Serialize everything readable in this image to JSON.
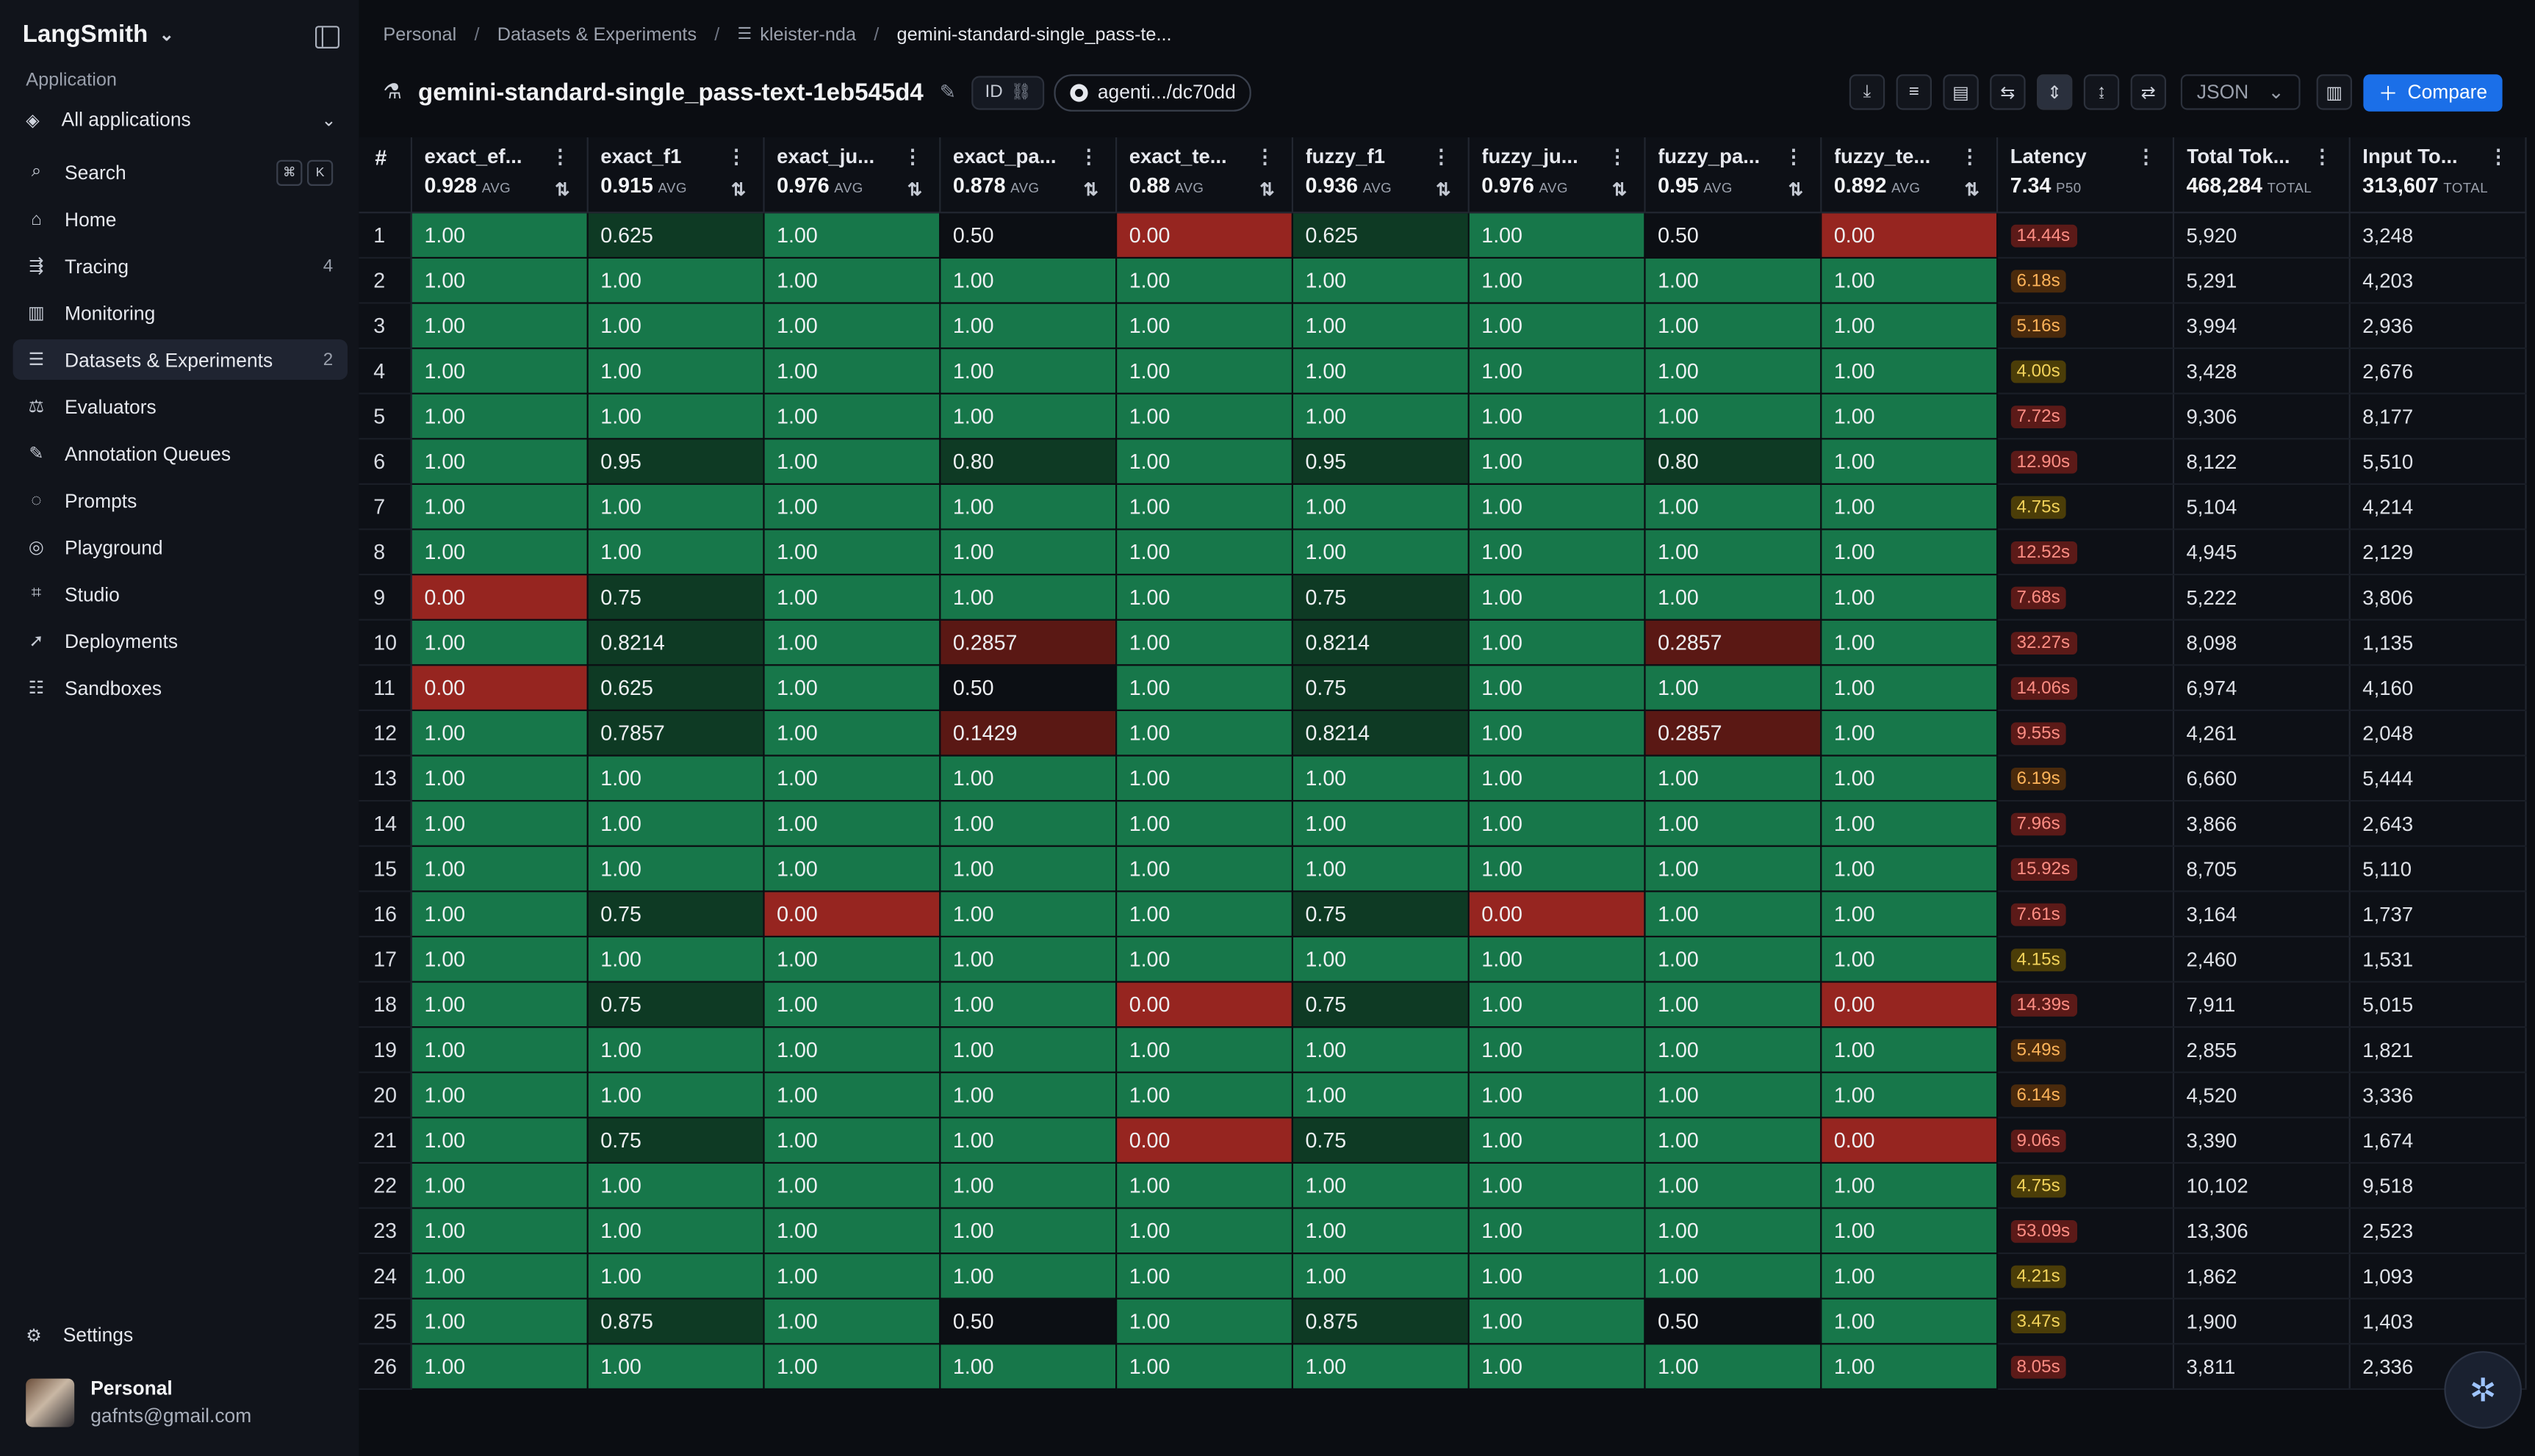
{
  "sidebar": {
    "brand": "LangSmith",
    "section_label": "Application",
    "app_selector": "All applications",
    "search": {
      "label": "Search",
      "shortcut": [
        "⌘",
        "K"
      ]
    },
    "items": [
      {
        "label": "Home",
        "icon": "home-icon",
        "glyph": "⌂",
        "badge": ""
      },
      {
        "label": "Tracing",
        "icon": "tracing-icon",
        "glyph": "⇶",
        "badge": "4"
      },
      {
        "label": "Monitoring",
        "icon": "monitoring-icon",
        "glyph": "▥",
        "badge": ""
      },
      {
        "label": "Datasets & Experiments",
        "icon": "database-icon",
        "glyph": "☰",
        "badge": "2",
        "active": true
      },
      {
        "label": "Evaluators",
        "icon": "evaluators-icon",
        "glyph": "⚖",
        "badge": ""
      },
      {
        "label": "Annotation Queues",
        "icon": "annotation-icon",
        "glyph": "✎",
        "badge": ""
      },
      {
        "label": "Prompts",
        "icon": "prompts-icon",
        "glyph": "◌",
        "badge": ""
      },
      {
        "label": "Playground",
        "icon": "playground-icon",
        "glyph": "◎",
        "badge": ""
      },
      {
        "label": "Studio",
        "icon": "studio-icon",
        "glyph": "⌗",
        "badge": ""
      },
      {
        "label": "Deployments",
        "icon": "rocket-icon",
        "glyph": "➚",
        "badge": ""
      },
      {
        "label": "Sandboxes",
        "icon": "sandbox-icon",
        "glyph": "☷",
        "badge": ""
      }
    ],
    "settings": "Settings",
    "user": {
      "name": "Personal",
      "email": "gafnts@gmail.com"
    }
  },
  "breadcrumb": [
    "Personal",
    "Datasets & Experiments",
    "kleister-nda",
    "gemini-standard-single_pass-te..."
  ],
  "header": {
    "title": "gemini-standard-single_pass-text-1eb545d4",
    "id_label": "ID",
    "git_label": "agenti.../dc70dd",
    "json_select": "JSON",
    "compare_label": "Compare"
  },
  "colors": {
    "green": "#17774a",
    "dark_green": "#0e3a24",
    "red": "#962520",
    "dark_red": "#5a1814",
    "neutral": "#0c0f14",
    "accent": "#1b6fe8"
  },
  "table": {
    "columns": [
      {
        "name": "exact_ef...",
        "agg": "0.928",
        "agg_label": "AVG"
      },
      {
        "name": "exact_f1",
        "agg": "0.915",
        "agg_label": "AVG"
      },
      {
        "name": "exact_ju...",
        "agg": "0.976",
        "agg_label": "AVG"
      },
      {
        "name": "exact_pa...",
        "agg": "0.878",
        "agg_label": "AVG"
      },
      {
        "name": "exact_te...",
        "agg": "0.88",
        "agg_label": "AVG"
      },
      {
        "name": "fuzzy_f1",
        "agg": "0.936",
        "agg_label": "AVG"
      },
      {
        "name": "fuzzy_ju...",
        "agg": "0.976",
        "agg_label": "AVG"
      },
      {
        "name": "fuzzy_pa...",
        "agg": "0.95",
        "agg_label": "AVG"
      },
      {
        "name": "fuzzy_te...",
        "agg": "0.892",
        "agg_label": "AVG"
      },
      {
        "name": "Latency",
        "agg": "7.34",
        "agg_label": "P50"
      },
      {
        "name": "Total Tok...",
        "agg": "468,284",
        "agg_label": "TOTAL"
      },
      {
        "name": "Input To...",
        "agg": "313,607",
        "agg_label": "TOTAL"
      }
    ],
    "rows": [
      [
        "1",
        "1.00",
        "0.625",
        "1.00",
        "0.50",
        "0.00",
        "0.625",
        "1.00",
        "0.50",
        "0.00",
        "14.44s",
        "5,920",
        "3,248"
      ],
      [
        "2",
        "1.00",
        "1.00",
        "1.00",
        "1.00",
        "1.00",
        "1.00",
        "1.00",
        "1.00",
        "1.00",
        "6.18s",
        "5,291",
        "4,203"
      ],
      [
        "3",
        "1.00",
        "1.00",
        "1.00",
        "1.00",
        "1.00",
        "1.00",
        "1.00",
        "1.00",
        "1.00",
        "5.16s",
        "3,994",
        "2,936"
      ],
      [
        "4",
        "1.00",
        "1.00",
        "1.00",
        "1.00",
        "1.00",
        "1.00",
        "1.00",
        "1.00",
        "1.00",
        "4.00s",
        "3,428",
        "2,676"
      ],
      [
        "5",
        "1.00",
        "1.00",
        "1.00",
        "1.00",
        "1.00",
        "1.00",
        "1.00",
        "1.00",
        "1.00",
        "7.72s",
        "9,306",
        "8,177"
      ],
      [
        "6",
        "1.00",
        "0.95",
        "1.00",
        "0.80",
        "1.00",
        "0.95",
        "1.00",
        "0.80",
        "1.00",
        "12.90s",
        "8,122",
        "5,510"
      ],
      [
        "7",
        "1.00",
        "1.00",
        "1.00",
        "1.00",
        "1.00",
        "1.00",
        "1.00",
        "1.00",
        "1.00",
        "4.75s",
        "5,104",
        "4,214"
      ],
      [
        "8",
        "1.00",
        "1.00",
        "1.00",
        "1.00",
        "1.00",
        "1.00",
        "1.00",
        "1.00",
        "1.00",
        "12.52s",
        "4,945",
        "2,129"
      ],
      [
        "9",
        "0.00",
        "0.75",
        "1.00",
        "1.00",
        "1.00",
        "0.75",
        "1.00",
        "1.00",
        "1.00",
        "7.68s",
        "5,222",
        "3,806"
      ],
      [
        "10",
        "1.00",
        "0.8214",
        "1.00",
        "0.2857",
        "1.00",
        "0.8214",
        "1.00",
        "0.2857",
        "1.00",
        "32.27s",
        "8,098",
        "1,135"
      ],
      [
        "11",
        "0.00",
        "0.625",
        "1.00",
        "0.50",
        "1.00",
        "0.75",
        "1.00",
        "1.00",
        "1.00",
        "14.06s",
        "6,974",
        "4,160"
      ],
      [
        "12",
        "1.00",
        "0.7857",
        "1.00",
        "0.1429",
        "1.00",
        "0.8214",
        "1.00",
        "0.2857",
        "1.00",
        "9.55s",
        "4,261",
        "2,048"
      ],
      [
        "13",
        "1.00",
        "1.00",
        "1.00",
        "1.00",
        "1.00",
        "1.00",
        "1.00",
        "1.00",
        "1.00",
        "6.19s",
        "6,660",
        "5,444"
      ],
      [
        "14",
        "1.00",
        "1.00",
        "1.00",
        "1.00",
        "1.00",
        "1.00",
        "1.00",
        "1.00",
        "1.00",
        "7.96s",
        "3,866",
        "2,643"
      ],
      [
        "15",
        "1.00",
        "1.00",
        "1.00",
        "1.00",
        "1.00",
        "1.00",
        "1.00",
        "1.00",
        "1.00",
        "15.92s",
        "8,705",
        "5,110"
      ],
      [
        "16",
        "1.00",
        "0.75",
        "0.00",
        "1.00",
        "1.00",
        "0.75",
        "0.00",
        "1.00",
        "1.00",
        "7.61s",
        "3,164",
        "1,737"
      ],
      [
        "17",
        "1.00",
        "1.00",
        "1.00",
        "1.00",
        "1.00",
        "1.00",
        "1.00",
        "1.00",
        "1.00",
        "4.15s",
        "2,460",
        "1,531"
      ],
      [
        "18",
        "1.00",
        "0.75",
        "1.00",
        "1.00",
        "0.00",
        "0.75",
        "1.00",
        "1.00",
        "0.00",
        "14.39s",
        "7,911",
        "5,015"
      ],
      [
        "19",
        "1.00",
        "1.00",
        "1.00",
        "1.00",
        "1.00",
        "1.00",
        "1.00",
        "1.00",
        "1.00",
        "5.49s",
        "2,855",
        "1,821"
      ],
      [
        "20",
        "1.00",
        "1.00",
        "1.00",
        "1.00",
        "1.00",
        "1.00",
        "1.00",
        "1.00",
        "1.00",
        "6.14s",
        "4,520",
        "3,336"
      ],
      [
        "21",
        "1.00",
        "0.75",
        "1.00",
        "1.00",
        "0.00",
        "0.75",
        "1.00",
        "1.00",
        "0.00",
        "9.06s",
        "3,390",
        "1,674"
      ],
      [
        "22",
        "1.00",
        "1.00",
        "1.00",
        "1.00",
        "1.00",
        "1.00",
        "1.00",
        "1.00",
        "1.00",
        "4.75s",
        "10,102",
        "9,518"
      ],
      [
        "23",
        "1.00",
        "1.00",
        "1.00",
        "1.00",
        "1.00",
        "1.00",
        "1.00",
        "1.00",
        "1.00",
        "53.09s",
        "13,306",
        "2,523"
      ],
      [
        "24",
        "1.00",
        "1.00",
        "1.00",
        "1.00",
        "1.00",
        "1.00",
        "1.00",
        "1.00",
        "1.00",
        "4.21s",
        "1,862",
        "1,093"
      ],
      [
        "25",
        "1.00",
        "0.875",
        "1.00",
        "0.50",
        "1.00",
        "0.875",
        "1.00",
        "0.50",
        "1.00",
        "3.47s",
        "1,900",
        "1,403"
      ],
      [
        "26",
        "1.00",
        "1.00",
        "1.00",
        "1.00",
        "1.00",
        "1.00",
        "1.00",
        "1.00",
        "1.00",
        "8.05s",
        "3,811",
        "2,336"
      ]
    ]
  }
}
